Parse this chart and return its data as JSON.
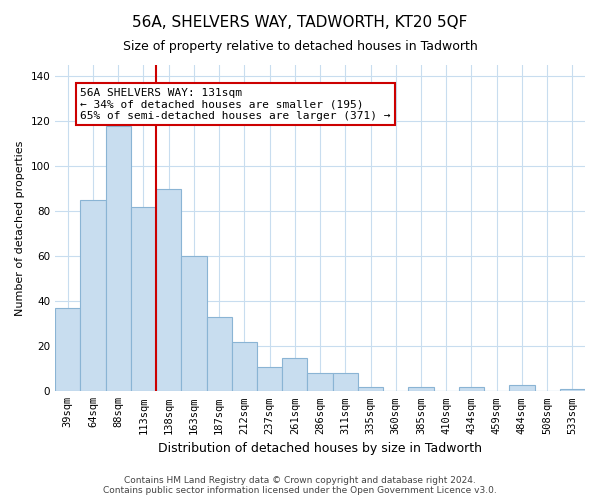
{
  "title": "56A, SHELVERS WAY, TADWORTH, KT20 5QF",
  "subtitle": "Size of property relative to detached houses in Tadworth",
  "xlabel": "Distribution of detached houses by size in Tadworth",
  "ylabel": "Number of detached properties",
  "categories": [
    "39sqm",
    "64sqm",
    "88sqm",
    "113sqm",
    "138sqm",
    "163sqm",
    "187sqm",
    "212sqm",
    "237sqm",
    "261sqm",
    "286sqm",
    "311sqm",
    "335sqm",
    "360sqm",
    "385sqm",
    "410sqm",
    "434sqm",
    "459sqm",
    "484sqm",
    "508sqm",
    "533sqm"
  ],
  "values": [
    37,
    85,
    118,
    82,
    90,
    60,
    33,
    22,
    11,
    15,
    8,
    8,
    2,
    0,
    2,
    0,
    2,
    0,
    3,
    0,
    1
  ],
  "bar_fill_color": "#c8ddef",
  "bar_edge_color": "#8ab4d4",
  "vline_color": "#cc0000",
  "annotation_text": "56A SHELVERS WAY: 131sqm\n← 34% of detached houses are smaller (195)\n65% of semi-detached houses are larger (371) →",
  "annotation_box_color": "#ffffff",
  "annotation_box_edge_color": "#cc0000",
  "ylim": [
    0,
    145
  ],
  "yticks": [
    0,
    20,
    40,
    60,
    80,
    100,
    120,
    140
  ],
  "grid_color": "#c8ddef",
  "footer": "Contains HM Land Registry data © Crown copyright and database right 2024.\nContains public sector information licensed under the Open Government Licence v3.0.",
  "bg_color": "#ffffff",
  "title_fontsize": 11,
  "subtitle_fontsize": 9,
  "xlabel_fontsize": 9,
  "ylabel_fontsize": 8,
  "tick_fontsize": 7.5,
  "footer_fontsize": 6.5,
  "annotation_fontsize": 8
}
